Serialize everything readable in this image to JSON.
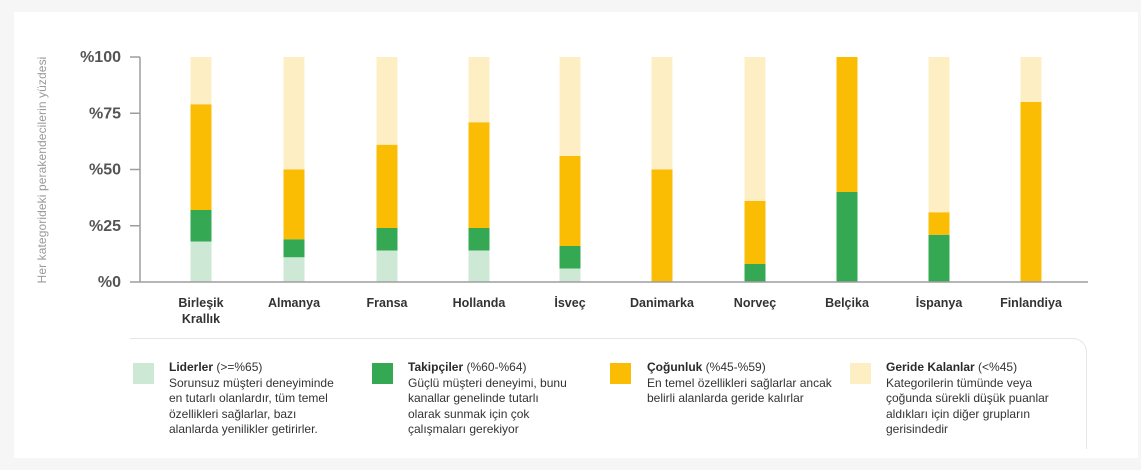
{
  "chart_data": {
    "type": "bar",
    "stacked": true,
    "ylabel": "Her kategorideki perakendecilerin yüzdesi",
    "ylim": [
      0,
      100
    ],
    "yticks": [
      "%0",
      "%25",
      "%50",
      "%75",
      "%100"
    ],
    "yticks_values": [
      0,
      25,
      50,
      75,
      100
    ],
    "grid": false,
    "categories": [
      "Birleşik Krallık",
      "Almanya",
      "Fransa",
      "Hollanda",
      "İsveç",
      "Danimarka",
      "Norveç",
      "Belçika",
      "İspanya",
      "Finlandiya"
    ],
    "category_lines": [
      [
        "Birleşik",
        "Krallık"
      ],
      [
        "Almanya"
      ],
      [
        "Fransa"
      ],
      [
        "Hollanda"
      ],
      [
        "İsveç"
      ],
      [
        "Danimarka"
      ],
      [
        "Norveç"
      ],
      [
        "Belçika"
      ],
      [
        "İspanya"
      ],
      [
        "Finlandiya"
      ]
    ],
    "series": [
      {
        "key": "liderler",
        "color": "#cde9d6",
        "values": [
          18,
          11,
          14,
          14,
          6,
          0,
          0,
          0,
          0,
          0
        ]
      },
      {
        "key": "takipciler",
        "color": "#34a853",
        "values": [
          14,
          8,
          10,
          10,
          10,
          0,
          8,
          40,
          21,
          0
        ]
      },
      {
        "key": "cogunluk",
        "color": "#fbbc04",
        "values": [
          47,
          31,
          37,
          47,
          40,
          50,
          28,
          60,
          10,
          80
        ]
      },
      {
        "key": "geride",
        "color": "#fdefc3",
        "values": [
          21,
          50,
          39,
          29,
          44,
          50,
          64,
          0,
          69,
          20
        ]
      }
    ]
  },
  "legend": [
    {
      "color": "#cde9d6",
      "name": "Liderler",
      "range": "(>=%65)",
      "desc": [
        "Sorunsuz müşteri deneyiminde",
        "en tutarlı olanlardır, tüm temel",
        "özellikleri sağlarlar, bazı",
        "alanlarda yenilikler getirirler."
      ]
    },
    {
      "color": "#34a853",
      "name": "Takipçiler",
      "range": "(%60-%64)",
      "desc": [
        "Güçlü müşteri deneyimi, bunu",
        "kanallar genelinde tutarlı",
        "olarak sunmak için çok",
        "çalışmaları gerekiyor"
      ]
    },
    {
      "color": "#fbbc04",
      "name": "Çoğunluk",
      "range": "(%45-%59)",
      "desc": [
        "En temel özellikleri sağlarlar ancak",
        "belirli alanlarda geride kalırlar"
      ]
    },
    {
      "color": "#fdefc3",
      "name": "Geride Kalanlar",
      "range": "(<%45)",
      "desc": [
        "Kategorilerin tümünde veya",
        "çoğunda sürekli düşük puanlar",
        "aldıkları için diğer grupların",
        "gerisindedir"
      ]
    }
  ]
}
